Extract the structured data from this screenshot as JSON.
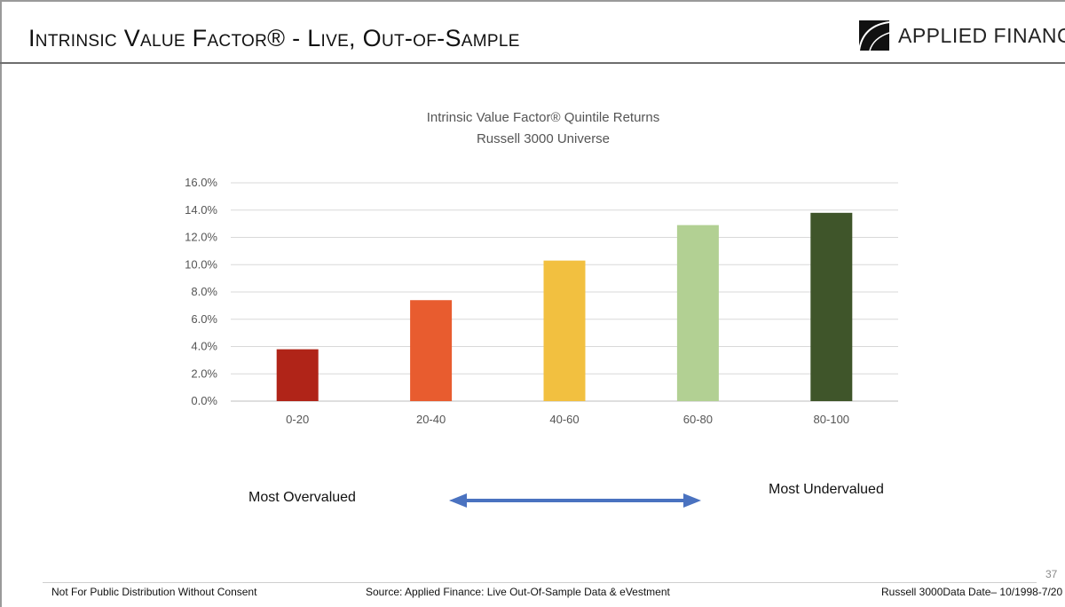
{
  "header": {
    "title": "Intrinsic Value Factor® - Live, Out-of-Sample",
    "logo_text": "APPLIED FINANCE"
  },
  "chart_data": {
    "type": "bar",
    "title": "Intrinsic Value Factor®  Quintile Returns",
    "subtitle": "Russell 3000 Universe",
    "categories": [
      "0-20",
      "20-40",
      "40-60",
      "60-80",
      "80-100"
    ],
    "values": [
      3.8,
      7.4,
      10.3,
      12.9,
      13.8
    ],
    "colors": [
      "#b02418",
      "#e85c2f",
      "#f2c040",
      "#b2d093",
      "#3f552a"
    ],
    "yticks": [
      "0.0%",
      "2.0%",
      "4.0%",
      "6.0%",
      "8.0%",
      "10.0%",
      "12.0%",
      "14.0%",
      "16.0%"
    ],
    "ylim": [
      0,
      16
    ],
    "xlabel": "",
    "ylabel": "",
    "grid": true,
    "legend": false
  },
  "annotations": {
    "left_label": "Most Overvalued",
    "right_label": "Most Undervalued",
    "arrow_color": "#4a72c0"
  },
  "footer": {
    "page_number": "37",
    "left": "Not For Public Distribution Without Consent",
    "center": "Source: Applied Finance: Live Out-Of-Sample Data & eVestment",
    "right": "Russell 3000Data Date– 10/1998-7/20"
  }
}
